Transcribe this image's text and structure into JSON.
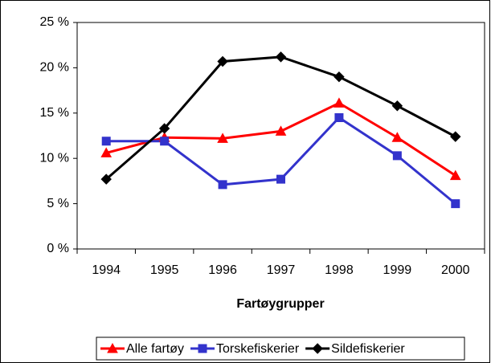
{
  "chart_data": {
    "type": "line",
    "x_label": "Fartøygrupper",
    "categories": [
      "1994",
      "1995",
      "1996",
      "1997",
      "1998",
      "1999",
      "2000"
    ],
    "series": [
      {
        "name": "Alle fartøy",
        "color": "#ff0000",
        "marker": "triangle",
        "values": [
          10.6,
          12.3,
          12.2,
          13.0,
          16.1,
          12.3,
          8.1
        ]
      },
      {
        "name": "Torskefiskerier",
        "color": "#3333cc",
        "marker": "square",
        "values": [
          11.9,
          11.9,
          7.1,
          7.7,
          14.5,
          10.3,
          5.0
        ]
      },
      {
        "name": "Sildefiskerier",
        "color": "#000000",
        "marker": "diamond",
        "values": [
          7.7,
          13.3,
          20.7,
          21.2,
          19.0,
          15.8,
          12.4
        ]
      }
    ],
    "ylim": [
      0,
      25
    ],
    "yticks": [
      {
        "value": 0,
        "label": "0 %"
      },
      {
        "value": 5,
        "label": "5 %"
      },
      {
        "value": 10,
        "label": "10 %"
      },
      {
        "value": 15,
        "label": "15 %"
      },
      {
        "value": 20,
        "label": "20 %"
      },
      {
        "value": 25,
        "label": "25 %"
      }
    ],
    "legend": "bottom"
  }
}
